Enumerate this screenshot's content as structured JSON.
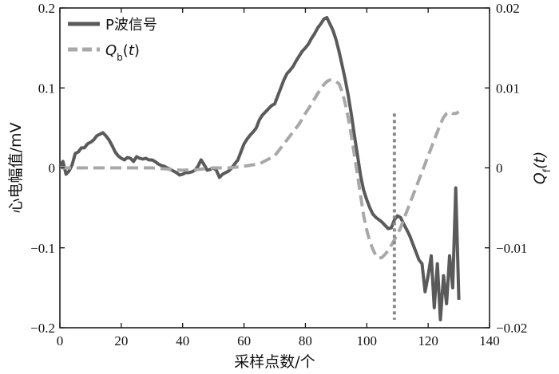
{
  "chart_data": {
    "type": "line",
    "xlabel": "采样点数/个",
    "ylabel_left": "心电幅值/mV",
    "ylabel_right": "Q_f(t)",
    "xlim": [
      0,
      140
    ],
    "ylim_left": [
      -0.2,
      0.2
    ],
    "ylim_right": [
      -0.02,
      0.02
    ],
    "x_ticks": [
      "0",
      "20",
      "40",
      "60",
      "80",
      "100",
      "120",
      "140"
    ],
    "y_left_ticks": [
      "0.2",
      "0.1",
      "0",
      "−0.1",
      "−0.2"
    ],
    "y_right_ticks": [
      "0.02",
      "0.01",
      "0",
      "−0.01",
      "−0.02"
    ],
    "grid": false,
    "legend_position": "top-left",
    "series": [
      {
        "name": "P波信号",
        "axis": "left",
        "style": "solid",
        "color": "#5a5a5a",
        "x": [
          0,
          1,
          2,
          3,
          4,
          5,
          6,
          7,
          8,
          9,
          10,
          11,
          12,
          13,
          14,
          15,
          16,
          17,
          18,
          19,
          20,
          21,
          22,
          23,
          24,
          25,
          26,
          27,
          28,
          29,
          30,
          31,
          32,
          33,
          34,
          35,
          36,
          37,
          38,
          39,
          40,
          41,
          42,
          43,
          44,
          45,
          46,
          47,
          48,
          49,
          50,
          51,
          52,
          53,
          54,
          55,
          56,
          57,
          58,
          59,
          60,
          61,
          62,
          63,
          64,
          65,
          66,
          67,
          68,
          69,
          70,
          71,
          72,
          73,
          74,
          75,
          76,
          77,
          78,
          79,
          80,
          81,
          82,
          83,
          84,
          85,
          86,
          87,
          88,
          89,
          90,
          91,
          92,
          93,
          94,
          95,
          96,
          97,
          98,
          99,
          100,
          101,
          102,
          103,
          104,
          105,
          106,
          107,
          108,
          109,
          110,
          111,
          112,
          113,
          114,
          115,
          116,
          117,
          118,
          119,
          120,
          121,
          122,
          123,
          124,
          125,
          126,
          127,
          128,
          129,
          130
        ],
        "y": [
          0.002,
          0.008,
          -0.008,
          -0.004,
          0.004,
          0.018,
          0.02,
          0.025,
          0.025,
          0.03,
          0.032,
          0.035,
          0.04,
          0.042,
          0.044,
          0.04,
          0.035,
          0.028,
          0.02,
          0.015,
          0.012,
          0.01,
          0.013,
          0.012,
          0.008,
          0.014,
          0.012,
          0.011,
          0.012,
          0.01,
          0.01,
          0.008,
          0.005,
          0.003,
          0.002,
          0.0,
          -0.002,
          -0.004,
          -0.006,
          -0.009,
          -0.008,
          -0.006,
          -0.006,
          -0.005,
          -0.003,
          0.002,
          0.01,
          0.004,
          -0.003,
          -0.002,
          0.0,
          -0.003,
          -0.012,
          -0.008,
          -0.006,
          -0.004,
          0.0,
          0.005,
          0.01,
          0.02,
          0.03,
          0.036,
          0.041,
          0.045,
          0.05,
          0.06,
          0.066,
          0.07,
          0.074,
          0.078,
          0.08,
          0.09,
          0.1,
          0.11,
          0.118,
          0.122,
          0.127,
          0.134,
          0.14,
          0.146,
          0.15,
          0.155,
          0.162,
          0.168,
          0.175,
          0.18,
          0.186,
          0.188,
          0.18,
          0.172,
          0.16,
          0.145,
          0.128,
          0.11,
          0.09,
          0.066,
          0.04,
          0.015,
          -0.01,
          -0.028,
          -0.04,
          -0.05,
          -0.058,
          -0.062,
          -0.065,
          -0.068,
          -0.072,
          -0.076,
          -0.075,
          -0.065,
          -0.06,
          -0.062,
          -0.07,
          -0.077,
          -0.085,
          -0.095,
          -0.105,
          -0.115,
          -0.12,
          -0.155,
          -0.135,
          -0.11,
          -0.175,
          -0.12,
          -0.19,
          -0.135,
          -0.17,
          -0.11,
          -0.15,
          -0.025,
          -0.165
        ]
      },
      {
        "name": "Q_b(t)",
        "axis": "right",
        "style": "dashed",
        "color": "#a8a8a8",
        "x": [
          0,
          5,
          10,
          20,
          30,
          40,
          45,
          50,
          55,
          60,
          65,
          70,
          72,
          75,
          78,
          80,
          82,
          84,
          86,
          87,
          88,
          89,
          90,
          91,
          92,
          93,
          94,
          95,
          96,
          97,
          98,
          99,
          100,
          101,
          102,
          103,
          104,
          105,
          106,
          107,
          108,
          109,
          110,
          111,
          112,
          113,
          114,
          115,
          116,
          117,
          118,
          119,
          120,
          121,
          122,
          123,
          124,
          125,
          126,
          127,
          128,
          129,
          130
        ],
        "y": [
          0.0,
          0.0,
          0.0,
          0.0,
          0.0,
          -0.0003,
          -0.0002,
          0.0,
          0.0,
          0.0002,
          0.0005,
          0.0015,
          0.0025,
          0.004,
          0.0055,
          0.0068,
          0.008,
          0.0093,
          0.0104,
          0.0108,
          0.011,
          0.011,
          0.0108,
          0.0105,
          0.0095,
          0.008,
          0.0062,
          0.004,
          0.0015,
          -0.001,
          -0.0035,
          -0.006,
          -0.0078,
          -0.0092,
          -0.0102,
          -0.011,
          -0.0113,
          -0.0112,
          -0.0108,
          -0.0103,
          -0.0097,
          -0.009,
          -0.0083,
          -0.0075,
          -0.0065,
          -0.0055,
          -0.0045,
          -0.0035,
          -0.0025,
          -0.0015,
          -0.0005,
          0.0005,
          0.0015,
          0.0025,
          0.0035,
          0.0045,
          0.0055,
          0.0063,
          0.0068,
          0.007,
          0.0068,
          0.0068,
          0.007
        ]
      }
    ],
    "vertical_marker": {
      "x": 109,
      "style": "dotted",
      "color": "#8a8a8a"
    }
  }
}
